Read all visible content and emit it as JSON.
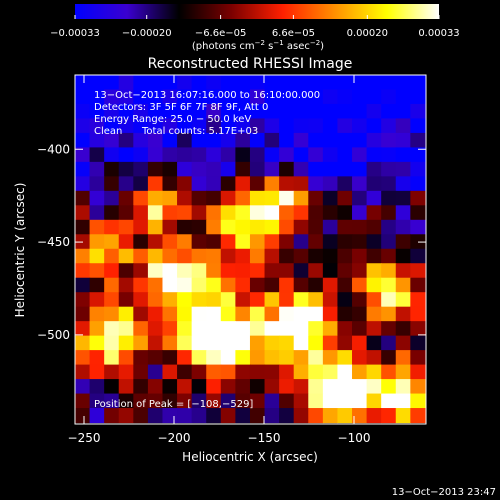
{
  "chart_data": {
    "type": "heatmap",
    "title": "Reconstructed RHESSI Image",
    "xlabel": "Heliocentric X (arcsec)",
    "ylabel": "Heliocentric Y (arcsec)",
    "xlim": [
      -255,
      -60
    ],
    "ylim": [
      -548,
      -360
    ],
    "x_ticks": [
      -250,
      -200,
      -150,
      -100
    ],
    "x_tick_labels": [
      "−250",
      "−200",
      "−150",
      "−100"
    ],
    "y_ticks": [
      -400,
      -450,
      -500
    ],
    "y_tick_labels": [
      "−400",
      "−450",
      "−500"
    ],
    "colorbar": {
      "range": [
        -0.00033,
        0.00033
      ],
      "ticks": [
        -0.00033,
        -0.0002,
        -6.6e-05,
        6.6e-05,
        0.0002,
        0.00033
      ],
      "tick_labels": [
        "−0.00033",
        "−0.00020",
        "−6.6e−05",
        "6.6e−05",
        "0.00020",
        "0.00033"
      ],
      "unit_text": "(photons cm",
      "unit_exp1": "−2",
      "unit_mid": " s",
      "unit_exp2": "−1",
      "unit_mid2": " asec",
      "unit_exp3": "−2",
      "unit_close": ")",
      "colors": [
        "#0000ff",
        "#3a00d0",
        "#000000",
        "#7a0000",
        "#ff2000",
        "#ff9000",
        "#ffff00",
        "#ffffff"
      ]
    },
    "annotations": {
      "time_range": "13−Oct−2013 16:07:16.000 to 16:10:00.000",
      "detectors": "Detectors: 3F 5F 6F 7F 8F 9F, Att 0",
      "energy_range": "Energy Range: 25.0 − 50.0 keV",
      "clean_label": "Clean",
      "total_counts": "Total counts: 5.17E+03",
      "peak_position": "Position of Peak = [−108,−529]"
    },
    "peak": [
      -108,
      -529
    ],
    "image_grid": {
      "cols": 24,
      "rows": 24,
      "cell_x_arcsec": 8.1,
      "cell_y_arcsec": 7.8,
      "description_values": "normalized intensity per cell, 0 = most negative, 1 = peak"
    }
  },
  "footer": {
    "timestamp": "13−Oct−2013 23:47"
  }
}
